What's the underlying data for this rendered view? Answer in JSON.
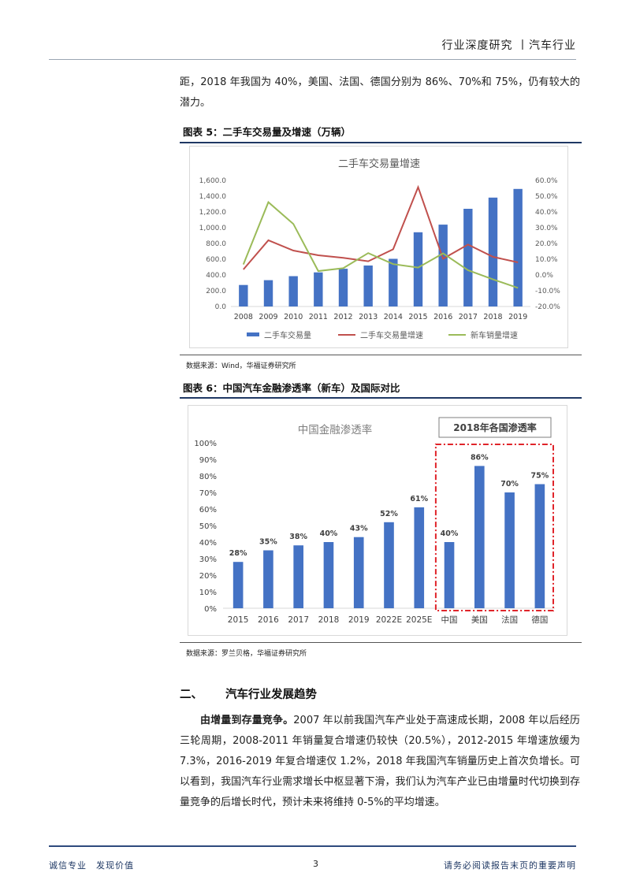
{
  "header": {
    "title": "行业深度研究 丨汽车行业"
  },
  "intro_paragraph": "距，2018 年我国为 40%，美国、法国、德国分别为 86%、70%和 75%，仍有较大的潜力。",
  "figure5": {
    "caption": "图表 5：二手车交易量及增速（万辆）",
    "source": "数据来源：Wind，华福证券研究所"
  },
  "figure6": {
    "caption": "图表 6：中国汽车金融渗透率（新车）及国际对比",
    "source": "数据来源：罗兰贝格，华福证券研究所"
  },
  "section": {
    "number": "二、",
    "title": "汽车行业发展趋势"
  },
  "body_paragraph": {
    "lead": "由增量到存量竞争。",
    "text": "2007 年以前我国汽车产业处于高速成长期，2008 年以后经历三轮周期，2008-2011 年销量复合增速仍较快（20.5%），2012-2015 年增速放缓为 7.3%，2016-2019 年复合增速仅 1.2%，2018 年我国汽车销量历史上首次负增长。可以看到，我国汽车行业需求增长中枢显著下滑，我们认为汽车产业已由增量时代切换到存量竞争的后增长时代，预计未来将维持 0-5%的平均增速。"
  },
  "footer": {
    "left": "诚信专业　发现价值",
    "page": "3",
    "right": "请务必阅读报告末页的重要声明"
  },
  "chart_data": [
    {
      "type": "bar",
      "title": "二手车交易量增速",
      "categories": [
        "2008",
        "2009",
        "2010",
        "2011",
        "2012",
        "2013",
        "2014",
        "2015",
        "2016",
        "2017",
        "2018",
        "2019"
      ],
      "series": [
        {
          "name": "二手车交易量",
          "type": "bar",
          "axis": "left",
          "color": "#4472c4",
          "values": [
            273,
            334,
            385,
            433,
            479,
            520,
            605,
            942,
            1039,
            1240,
            1382,
            1492
          ]
        },
        {
          "name": "二手车交易量增速",
          "type": "line",
          "axis": "right",
          "color": "#c0504d",
          "values": [
            3.5,
            22.0,
            15.5,
            12.5,
            10.9,
            8.7,
            16.3,
            55.7,
            10.3,
            19.3,
            11.5,
            8.0
          ]
        },
        {
          "name": "新车销量增速",
          "type": "line",
          "axis": "right",
          "color": "#9bbb59",
          "values": [
            6.7,
            46.2,
            32.4,
            2.5,
            4.3,
            13.9,
            6.9,
            4.7,
            13.7,
            3.0,
            -2.8,
            -8.2
          ]
        }
      ],
      "y_left": {
        "min": 0,
        "max": 1600,
        "step": 200,
        "ticks": [
          "0.0",
          "200.0",
          "400.0",
          "600.0",
          "800.0",
          "1,000.0",
          "1,200.0",
          "1,400.0",
          "1,600.0"
        ]
      },
      "y_right": {
        "min": -20,
        "max": 60,
        "step": 10,
        "ticks": [
          "-20.0%",
          "-10.0%",
          "0.0%",
          "10.0%",
          "20.0%",
          "30.0%",
          "40.0%",
          "50.0%",
          "60.0%"
        ]
      },
      "legend_position": "bottom",
      "grid": false
    },
    {
      "type": "bar",
      "title": "中国金融渗透率",
      "inset_title": "2018年各国渗透率",
      "categories": [
        "2015",
        "2016",
        "2017",
        "2018",
        "2019",
        "2022E",
        "2025E",
        "中国",
        "美国",
        "法国",
        "德国"
      ],
      "values": [
        28,
        35,
        38,
        40,
        43,
        52,
        61,
        40,
        86,
        70,
        75
      ],
      "data_labels": [
        "28%",
        "35%",
        "38%",
        "40%",
        "43%",
        "52%",
        "61%",
        "40%",
        "86%",
        "70%",
        "75%"
      ],
      "color": "#4472c4",
      "highlight_color": "#e0242a",
      "y": {
        "min": 0,
        "max": 100,
        "step": 10,
        "ticks": [
          "0%",
          "10%",
          "20%",
          "30%",
          "40%",
          "50%",
          "60%",
          "70%",
          "80%",
          "90%",
          "100%"
        ]
      },
      "grid": false
    }
  ]
}
